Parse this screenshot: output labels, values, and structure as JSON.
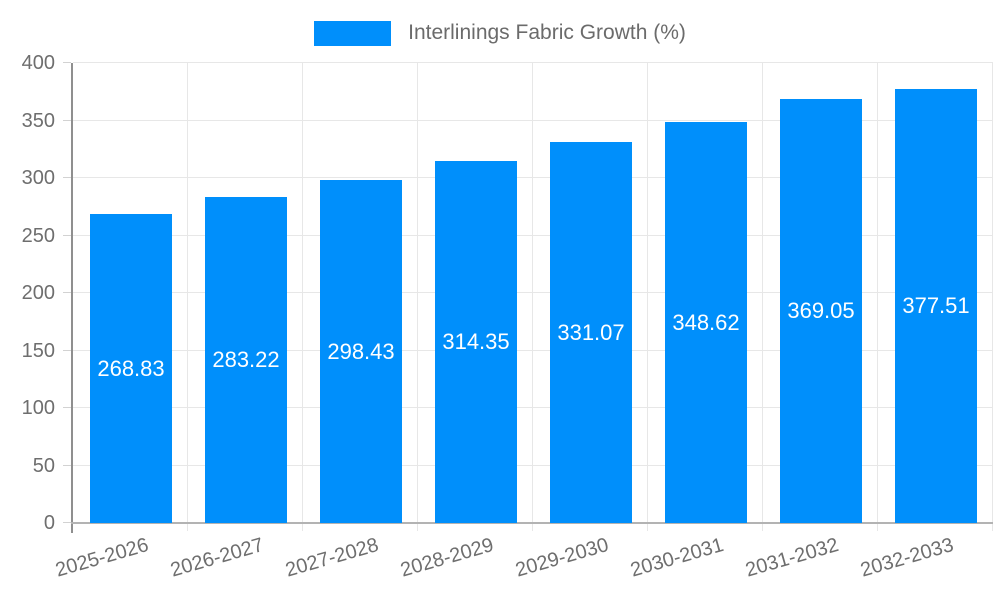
{
  "legend": {
    "label": "Interlinings Fabric Growth (%)",
    "swatch_color": "#008FFB"
  },
  "colors": {
    "bar": "#008FFB",
    "grid": "#e7e7e7",
    "y_axis_line": "#8f8f8f",
    "x_axis_line": "#b3b3b3",
    "tick_mark": "#d2d2d2",
    "tick_label": "#6e6e6e",
    "legend_text": "#6b6b6b",
    "value_label": "#ffffff",
    "background": "#ffffff"
  },
  "chart_data": {
    "type": "bar",
    "title": "Interlinings Fabric Growth (%)",
    "categories": [
      "2025-2026",
      "2026-2027",
      "2027-2028",
      "2028-2029",
      "2029-2030",
      "2030-2031",
      "2031-2032",
      "2032-2033"
    ],
    "values": [
      268.83,
      283.22,
      298.43,
      314.35,
      331.07,
      348.62,
      369.05,
      377.51
    ],
    "data_labels": [
      "268.83",
      "283.22",
      "298.43",
      "314.35",
      "331.07",
      "348.62",
      "369.05",
      "377.51"
    ],
    "xlabel": "",
    "ylabel": "",
    "ylim": [
      0,
      400
    ],
    "yticks": [
      0,
      50,
      100,
      150,
      200,
      250,
      300,
      350,
      400
    ],
    "grid": true,
    "legend_position": "top",
    "x_label_rotation_deg": -16
  }
}
